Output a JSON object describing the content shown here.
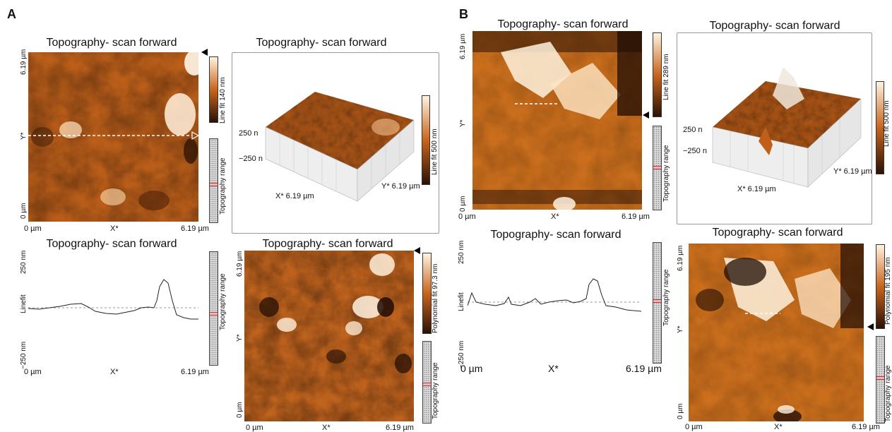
{
  "panels": {
    "A": "A",
    "B": "B"
  },
  "A": {
    "img1": {
      "title": "Topography- scan forward",
      "y_top": "6.19 µm",
      "y_mid": "Y*",
      "y_bot": "0 µm",
      "x_left": "0 µm",
      "x_mid": "X*",
      "x_right": "6.19 µm",
      "colorbar": "Line fit 140 nm",
      "range": "Topography range"
    },
    "surf1": {
      "title": "Topography- scan forward",
      "z_top": "250 n",
      "z_bot": "−250 n",
      "x_label": "X* 6.19 µm",
      "y_label": "Y* 6.19 µm",
      "colorbar": "Line fit 500 nm"
    },
    "profile": {
      "title": "Topography- scan forward",
      "y_top": "250 nm",
      "y_mid": "Linefit",
      "y_bot": "−250 nm",
      "x_left": "0 µm",
      "x_mid": "X*",
      "x_right": "6.19 µm",
      "range": "Topography range"
    },
    "img2": {
      "title": "Topography- scan forward",
      "y_top": "6.19 µm",
      "y_mid": "Y*",
      "y_bot": "0 µm",
      "x_left": "0 µm",
      "x_mid": "X*",
      "x_right": "6.19 µm",
      "colorbar": "Polynomial fit 97.3 nm",
      "range": "Topography range"
    }
  },
  "B": {
    "img1": {
      "title": "Topography- scan forward",
      "y_top": "6.19 µm",
      "y_mid": "Y*",
      "y_bot": "0 µm",
      "x_left": "0 µm",
      "x_mid": "X*",
      "x_right": "6.19 µm",
      "colorbar": "Line fit 289 nm",
      "range": "Topography range"
    },
    "surf1": {
      "title": "Topography- scan forward",
      "z_top": "250 n",
      "z_bot": "−250 n",
      "x_label": "X* 6.19 µm",
      "y_label": "Y* 6.19 µm",
      "colorbar": "Line fit 500 nm"
    },
    "profile": {
      "title": "Topography- scan forward",
      "y_top": "250 nm",
      "y_mid": "Linefit",
      "y_bot": "−250 nm",
      "x_left": "0 µm",
      "x_mid": "X*",
      "x_right": "6.19 µm",
      "range": "Topography range"
    },
    "img2": {
      "title": "Topography- scan forward",
      "y_top": "6.19 µm",
      "y_mid": "Y*",
      "y_bot": "0 µm",
      "x_left": "0 µm",
      "x_mid": "X*",
      "x_right": "6.19 µm",
      "colorbar": "Polynomial fit 195 nm",
      "range": "Topography range"
    }
  },
  "colors": {
    "afm_dark": "#2a1206",
    "afm_mid": "#c8651c",
    "afm_light": "#fff3e0",
    "range_marker": "#cc3333"
  }
}
